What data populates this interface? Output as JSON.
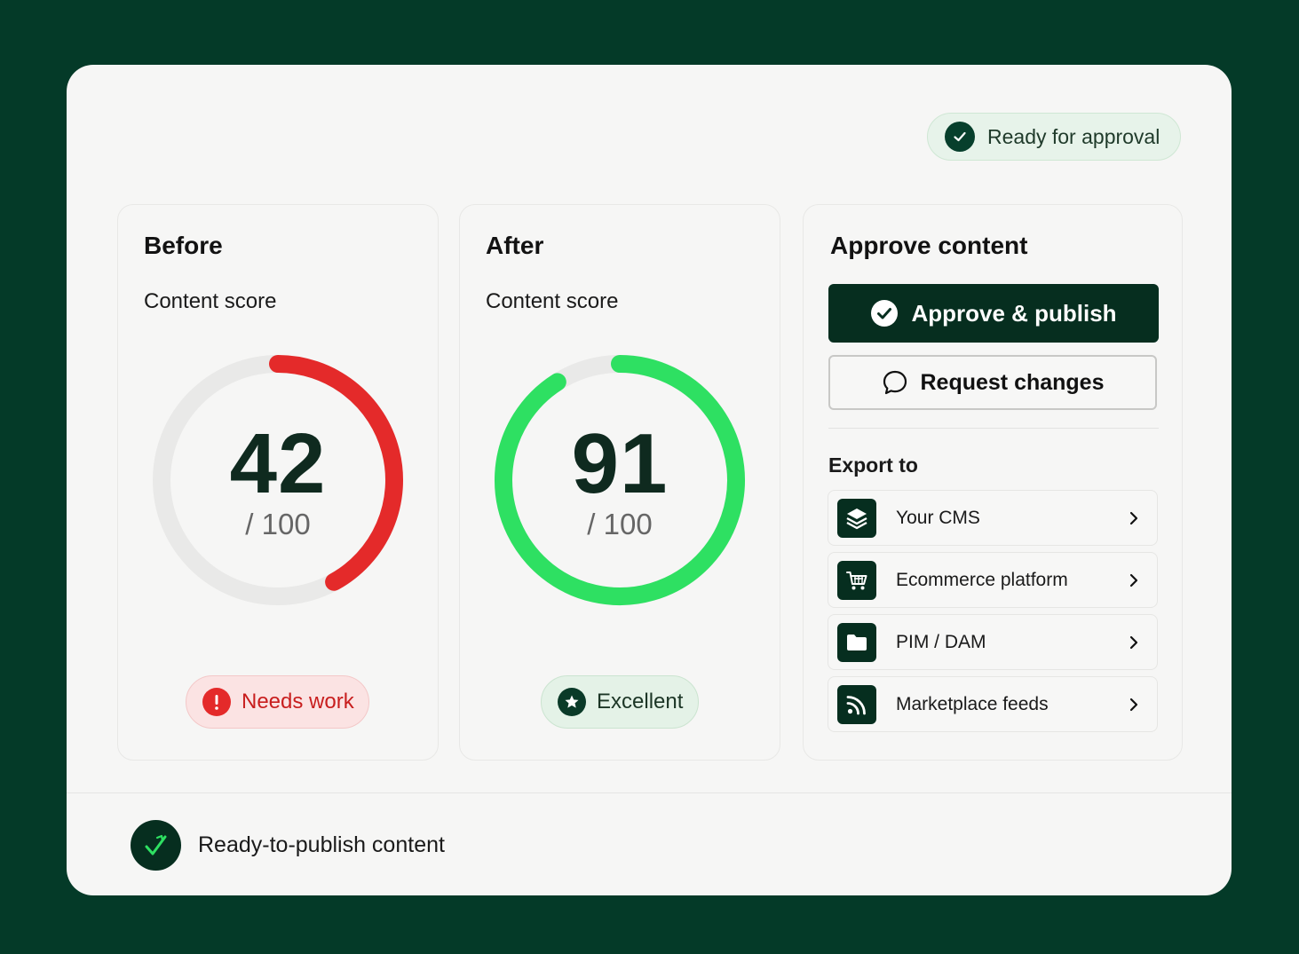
{
  "header": {
    "status_label": "Ready for approval"
  },
  "before": {
    "title": "Before",
    "subtitle": "Content score",
    "score": 42,
    "score_display": "42",
    "out_of": "/ 100",
    "badge": "Needs work",
    "ring_color": "#e42a2a"
  },
  "after": {
    "title": "After",
    "subtitle": "Content score",
    "score": 91,
    "score_display": "91",
    "out_of": "/ 100",
    "badge": "Excellent",
    "ring_color": "#2ee062"
  },
  "approve": {
    "title": "Approve content",
    "approve_label": "Approve & publish",
    "request_label": "Request changes",
    "export_label": "Export to",
    "export_items": [
      {
        "label": "Your CMS",
        "icon": "layers-icon"
      },
      {
        "label": "Ecommerce platform",
        "icon": "cart-icon"
      },
      {
        "label": "PIM / DAM",
        "icon": "folder-icon"
      },
      {
        "label": "Marketplace feeds",
        "icon": "rss-icon"
      }
    ]
  },
  "footer": {
    "label": "Ready-to-publish content"
  },
  "colors": {
    "background": "#043a28",
    "accent_dark": "#062e1f",
    "bad": "#e42a2a",
    "good": "#2ee062"
  }
}
